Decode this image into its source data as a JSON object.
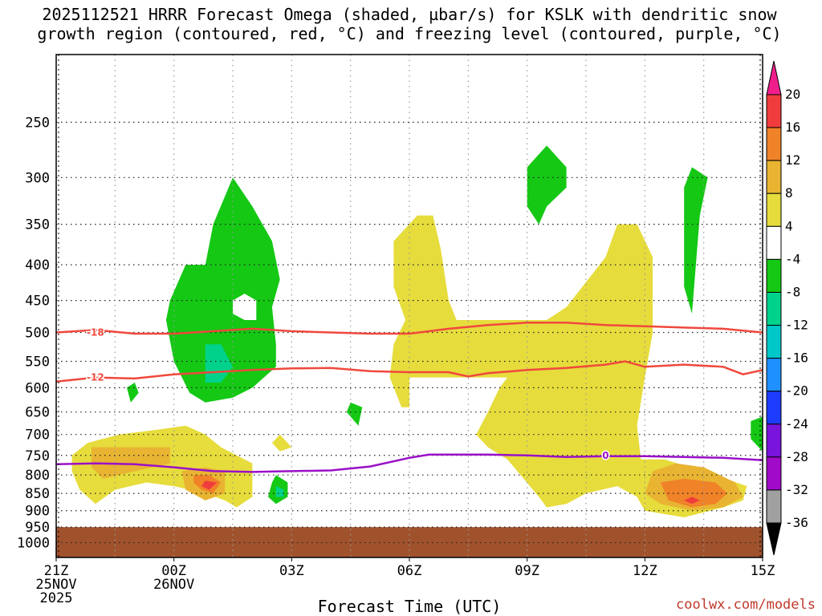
{
  "title_line1": "2025112521 HRRR Forecast Omega (shaded, µbar/s) for KSLK with dendritic snow",
  "title_line2": "growth region (contoured, red, °C) and freezing level (contoured, purple, °C)",
  "xlabel": "Forecast Time (UTC)",
  "credit": "coolwx.com/models",
  "colors": {
    "dgz_contour": "#f0483c",
    "freezing_contour": "#9a10c8",
    "ground": "#a0522d",
    "grid": "#9a9a9a"
  },
  "chart_data": {
    "type": "heatmap",
    "title": "2025112521 HRRR Forecast Omega (shaded, µbar/s) for KSLK with dendritic snow growth region (contoured, red, °C) and freezing level (contoured, purple, °C)",
    "xlabel": "Forecast Time (UTC)",
    "ylabel": "",
    "x_range_hours": [
      0,
      18
    ],
    "y_scale": "log-pressure",
    "y_range_mb": [
      1050,
      200
    ],
    "grid": true,
    "x_ticks": [
      {
        "hour": 0,
        "lines": [
          "21Z",
          "25NOV",
          "2025"
        ]
      },
      {
        "hour": 3,
        "lines": [
          "00Z",
          "26NOV"
        ]
      },
      {
        "hour": 6,
        "lines": [
          "03Z"
        ]
      },
      {
        "hour": 9,
        "lines": [
          "06Z"
        ]
      },
      {
        "hour": 12,
        "lines": [
          "09Z"
        ]
      },
      {
        "hour": 15,
        "lines": [
          "12Z"
        ]
      },
      {
        "hour": 18,
        "lines": [
          "15Z"
        ]
      }
    ],
    "y_ticks": [
      250,
      300,
      350,
      400,
      450,
      500,
      550,
      600,
      650,
      700,
      750,
      800,
      850,
      900,
      950,
      1000
    ],
    "colorbar": {
      "labels": [
        "20",
        "16",
        "12",
        "8",
        "4",
        "-4",
        "-8",
        "-12",
        "-16",
        "-20",
        "-24",
        "-28",
        "-32",
        "-36"
      ],
      "bins": [
        {
          "color": "#f03c3c"
        },
        {
          "color": "#f08228"
        },
        {
          "color": "#e8b432"
        },
        {
          "color": "#e6dc3c"
        },
        {
          "color": "#ffffff"
        },
        {
          "color": "#14c814"
        },
        {
          "color": "#00d28c"
        },
        {
          "color": "#00c8c8"
        },
        {
          "color": "#1e90ff"
        },
        {
          "color": "#1e3cff"
        },
        {
          "color": "#7814dc"
        },
        {
          "color": "#a00ac8"
        },
        {
          "color": "#a0a0a0"
        }
      ],
      "top_arrow_color": "#f01e8c",
      "bottom_arrow_color": "#000000"
    },
    "omega_regions": [
      {
        "level": "-4 to -8",
        "color": "#14c814",
        "points": [
          [
            2.9,
            450
          ],
          [
            3.3,
            400
          ],
          [
            3.8,
            400
          ],
          [
            4.0,
            350
          ],
          [
            4.5,
            300
          ],
          [
            5.0,
            330
          ],
          [
            5.5,
            370
          ],
          [
            5.7,
            420
          ],
          [
            5.5,
            460
          ],
          [
            5.6,
            520
          ],
          [
            5.6,
            560
          ],
          [
            5.0,
            600
          ],
          [
            4.5,
            620
          ],
          [
            3.8,
            630
          ],
          [
            3.4,
            610
          ],
          [
            3.0,
            550
          ],
          [
            2.8,
            480
          ]
        ]
      },
      {
        "level": "hole",
        "color": "#ffffff",
        "points": [
          [
            4.5,
            450
          ],
          [
            4.8,
            440
          ],
          [
            5.1,
            450
          ],
          [
            5.1,
            480
          ],
          [
            4.8,
            480
          ],
          [
            4.5,
            470
          ]
        ]
      },
      {
        "level": "-8 to -12",
        "color": "#00d28c",
        "points": [
          [
            3.8,
            520
          ],
          [
            4.2,
            520
          ],
          [
            4.5,
            560
          ],
          [
            4.2,
            590
          ],
          [
            3.8,
            590
          ],
          [
            3.8,
            550
          ]
        ]
      },
      {
        "level": "-4 to -8",
        "color": "#14c814",
        "points": [
          [
            12.0,
            290
          ],
          [
            12.5,
            270
          ],
          [
            13.0,
            290
          ],
          [
            13.0,
            310
          ],
          [
            12.5,
            330
          ],
          [
            12.3,
            350
          ],
          [
            12.0,
            330
          ]
        ]
      },
      {
        "level": "-4 to -8",
        "color": "#14c814",
        "points": [
          [
            16.0,
            310
          ],
          [
            16.2,
            290
          ],
          [
            16.6,
            300
          ],
          [
            16.4,
            340
          ],
          [
            16.3,
            400
          ],
          [
            16.2,
            470
          ],
          [
            16.0,
            430
          ]
        ]
      },
      {
        "level": "-4 to -8",
        "color": "#14c814",
        "points": [
          [
            1.8,
            600
          ],
          [
            2.0,
            590
          ],
          [
            2.1,
            610
          ],
          [
            1.9,
            630
          ]
        ]
      },
      {
        "level": "-4 to -8",
        "color": "#14c814",
        "points": [
          [
            7.5,
            630
          ],
          [
            7.8,
            640
          ],
          [
            7.7,
            680
          ],
          [
            7.4,
            650
          ]
        ]
      },
      {
        "level": "-4 to -8",
        "color": "#14c814",
        "points": [
          [
            5.6,
            800
          ],
          [
            5.9,
            820
          ],
          [
            5.9,
            860
          ],
          [
            5.6,
            880
          ],
          [
            5.4,
            860
          ],
          [
            5.5,
            820
          ]
        ]
      },
      {
        "level": "-8 to -12",
        "color": "#00d28c",
        "points": [
          [
            5.6,
            830
          ],
          [
            5.8,
            840
          ],
          [
            5.8,
            860
          ],
          [
            5.6,
            860
          ]
        ]
      },
      {
        "level": "-4 to -8",
        "color": "#14c814",
        "points": [
          [
            17.7,
            670
          ],
          [
            18.0,
            660
          ],
          [
            18.0,
            740
          ],
          [
            17.7,
            710
          ]
        ]
      },
      {
        "level": "4 to 8",
        "color": "#e6dc3c",
        "points": [
          [
            8.6,
            370
          ],
          [
            9.2,
            340
          ],
          [
            9.6,
            340
          ],
          [
            9.8,
            380
          ],
          [
            10.0,
            450
          ],
          [
            10.2,
            480
          ],
          [
            11.5,
            480
          ],
          [
            12.5,
            480
          ],
          [
            13.0,
            460
          ],
          [
            14.0,
            390
          ],
          [
            14.3,
            350
          ],
          [
            14.8,
            350
          ],
          [
            15.2,
            390
          ],
          [
            15.2,
            500
          ],
          [
            15.0,
            580
          ],
          [
            14.8,
            680
          ],
          [
            14.9,
            760
          ],
          [
            15.5,
            760
          ],
          [
            16.8,
            800
          ],
          [
            17.6,
            830
          ],
          [
            17.5,
            870
          ],
          [
            17.0,
            890
          ],
          [
            16.0,
            920
          ],
          [
            15.0,
            900
          ],
          [
            14.8,
            860
          ],
          [
            14.3,
            830
          ],
          [
            13.5,
            850
          ],
          [
            13.0,
            880
          ],
          [
            12.5,
            890
          ],
          [
            12.3,
            860
          ],
          [
            11.5,
            760
          ],
          [
            11.0,
            730
          ],
          [
            10.7,
            700
          ],
          [
            11.0,
            650
          ],
          [
            11.3,
            600
          ],
          [
            11.5,
            580
          ],
          [
            10.0,
            580
          ],
          [
            9.4,
            580
          ],
          [
            9.0,
            580
          ],
          [
            9.0,
            640
          ],
          [
            8.8,
            640
          ],
          [
            8.5,
            580
          ],
          [
            8.6,
            520
          ],
          [
            8.9,
            480
          ],
          [
            8.6,
            430
          ]
        ]
      },
      {
        "level": "4 to 8",
        "color": "#e6dc3c",
        "points": [
          [
            0.4,
            750
          ],
          [
            0.8,
            720
          ],
          [
            1.6,
            700
          ],
          [
            2.5,
            690
          ],
          [
            3.3,
            680
          ],
          [
            3.8,
            700
          ],
          [
            4.2,
            730
          ],
          [
            4.6,
            750
          ],
          [
            5.0,
            770
          ],
          [
            5.0,
            860
          ],
          [
            4.6,
            890
          ],
          [
            4.3,
            870
          ],
          [
            3.8,
            850
          ],
          [
            3.0,
            830
          ],
          [
            2.3,
            820
          ],
          [
            1.5,
            840
          ],
          [
            1.0,
            880
          ],
          [
            0.6,
            840
          ],
          [
            0.4,
            790
          ]
        ]
      },
      {
        "level": "4 to 8",
        "color": "#e6dc3c",
        "points": [
          [
            5.5,
            720
          ],
          [
            5.7,
            700
          ],
          [
            6.0,
            730
          ],
          [
            5.7,
            740
          ]
        ]
      },
      {
        "level": "8 to 12",
        "color": "#e8b432",
        "points": [
          [
            0.9,
            730
          ],
          [
            2.9,
            730
          ],
          [
            2.9,
            770
          ],
          [
            2.0,
            790
          ],
          [
            1.2,
            810
          ],
          [
            0.9,
            780
          ]
        ]
      },
      {
        "level": "8 to 12",
        "color": "#e8b432",
        "points": [
          [
            3.2,
            790
          ],
          [
            3.8,
            780
          ],
          [
            4.3,
            790
          ],
          [
            4.3,
            850
          ],
          [
            3.8,
            870
          ],
          [
            3.3,
            840
          ]
        ]
      },
      {
        "level": "12 to 16",
        "color": "#f08228",
        "points": [
          [
            3.5,
            800
          ],
          [
            3.9,
            800
          ],
          [
            4.2,
            820
          ],
          [
            4.0,
            850
          ],
          [
            3.7,
            840
          ],
          [
            3.5,
            820
          ]
        ]
      },
      {
        "level": "16 to 20",
        "color": "#f03c3c",
        "points": [
          [
            3.8,
            815
          ],
          [
            4.1,
            820
          ],
          [
            3.9,
            840
          ],
          [
            3.7,
            830
          ]
        ]
      },
      {
        "level": "8 to 12",
        "color": "#e8b432",
        "points": [
          [
            15.2,
            790
          ],
          [
            15.8,
            770
          ],
          [
            16.5,
            780
          ],
          [
            17.3,
            820
          ],
          [
            17.5,
            860
          ],
          [
            17.0,
            890
          ],
          [
            16.2,
            900
          ],
          [
            15.4,
            880
          ],
          [
            15.0,
            850
          ]
        ]
      },
      {
        "level": "12 to 16",
        "color": "#f08228",
        "points": [
          [
            15.4,
            820
          ],
          [
            16.0,
            810
          ],
          [
            16.8,
            820
          ],
          [
            17.1,
            850
          ],
          [
            16.8,
            880
          ],
          [
            16.2,
            890
          ],
          [
            15.6,
            870
          ]
        ]
      },
      {
        "level": "16 to 20",
        "color": "#f03c3c",
        "points": [
          [
            16.2,
            860
          ],
          [
            16.4,
            870
          ],
          [
            16.2,
            880
          ],
          [
            16.0,
            870
          ]
        ]
      }
    ],
    "contours": [
      {
        "name": "dgz_-18",
        "label": "-18",
        "label_at": [
          1.0,
          500
        ],
        "color_key": "dgz_contour",
        "points": [
          [
            0,
            500
          ],
          [
            1.0,
            496
          ],
          [
            2.0,
            502
          ],
          [
            3.0,
            502
          ],
          [
            4.0,
            498
          ],
          [
            5.0,
            494
          ],
          [
            6.0,
            498
          ],
          [
            7.0,
            500
          ],
          [
            8.0,
            502
          ],
          [
            9.0,
            502
          ],
          [
            10.0,
            494
          ],
          [
            11.0,
            488
          ],
          [
            12.0,
            484
          ],
          [
            13.0,
            484
          ],
          [
            14.0,
            488
          ],
          [
            15.0,
            490
          ],
          [
            16.0,
            492
          ],
          [
            17.0,
            494
          ],
          [
            18.0,
            500
          ]
        ]
      },
      {
        "name": "dgz_-12",
        "label": "-12",
        "label_at": [
          1.0,
          580
        ],
        "color_key": "dgz_contour",
        "points": [
          [
            0,
            588
          ],
          [
            1.0,
            580
          ],
          [
            2.0,
            582
          ],
          [
            3.0,
            574
          ],
          [
            4.0,
            570
          ],
          [
            5.0,
            566
          ],
          [
            6.0,
            563
          ],
          [
            7.0,
            562
          ],
          [
            8.0,
            568
          ],
          [
            9.0,
            570
          ],
          [
            10.0,
            570
          ],
          [
            10.5,
            578
          ],
          [
            11.0,
            572
          ],
          [
            12.0,
            566
          ],
          [
            13.0,
            562
          ],
          [
            14.0,
            556
          ],
          [
            14.5,
            550
          ],
          [
            15.0,
            560
          ],
          [
            16.0,
            556
          ],
          [
            17.0,
            560
          ],
          [
            17.5,
            574
          ],
          [
            18.0,
            566
          ]
        ]
      },
      {
        "name": "freezing_0",
        "label": "0",
        "label_at": [
          14.0,
          750
        ],
        "color_key": "freezing_contour",
        "points": [
          [
            0,
            772
          ],
          [
            1.0,
            770
          ],
          [
            2.0,
            772
          ],
          [
            3.0,
            780
          ],
          [
            4.0,
            790
          ],
          [
            5.0,
            792
          ],
          [
            6.0,
            790
          ],
          [
            7.0,
            788
          ],
          [
            8.0,
            778
          ],
          [
            9.0,
            756
          ],
          [
            9.5,
            748
          ],
          [
            10.0,
            748
          ],
          [
            11.0,
            748
          ],
          [
            12.0,
            750
          ],
          [
            13.0,
            754
          ],
          [
            14.0,
            752
          ],
          [
            15.0,
            752
          ],
          [
            16.0,
            754
          ],
          [
            17.0,
            756
          ],
          [
            18.0,
            762
          ]
        ]
      }
    ]
  }
}
